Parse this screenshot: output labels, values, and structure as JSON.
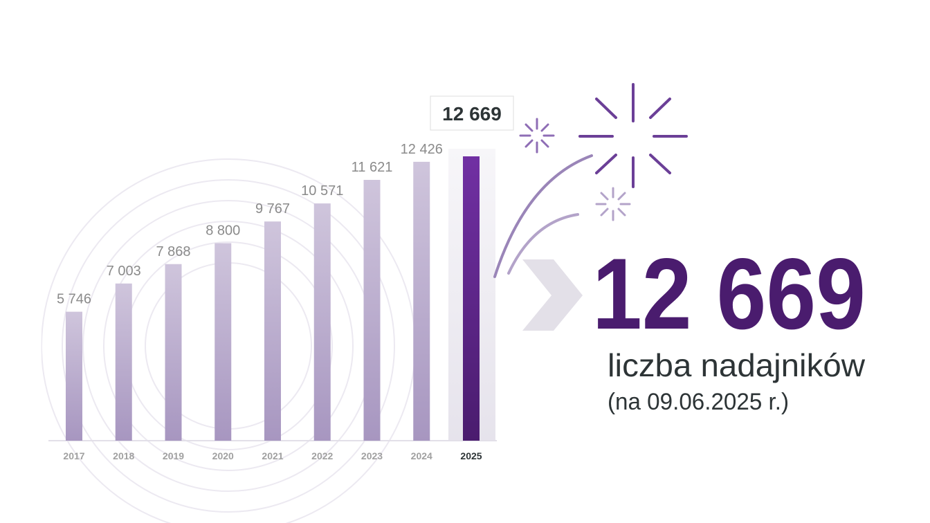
{
  "chart_data": {
    "type": "bar",
    "categories": [
      "2017",
      "2018",
      "2019",
      "2020",
      "2021",
      "2022",
      "2023",
      "2024",
      "2025"
    ],
    "values": [
      5746,
      7003,
      7868,
      8800,
      9767,
      10571,
      11621,
      12426,
      12669
    ],
    "value_labels": [
      "5 746",
      "7 003",
      "7 868",
      "8 800",
      "9 767",
      "10 571",
      "11 621",
      "12 426",
      "12 669"
    ],
    "color": "#b3a3c9",
    "highlight_color": "#5b2487",
    "subtitle": "liczba nadajników",
    "note": "(na 09.06.2025 r.)"
  }
}
